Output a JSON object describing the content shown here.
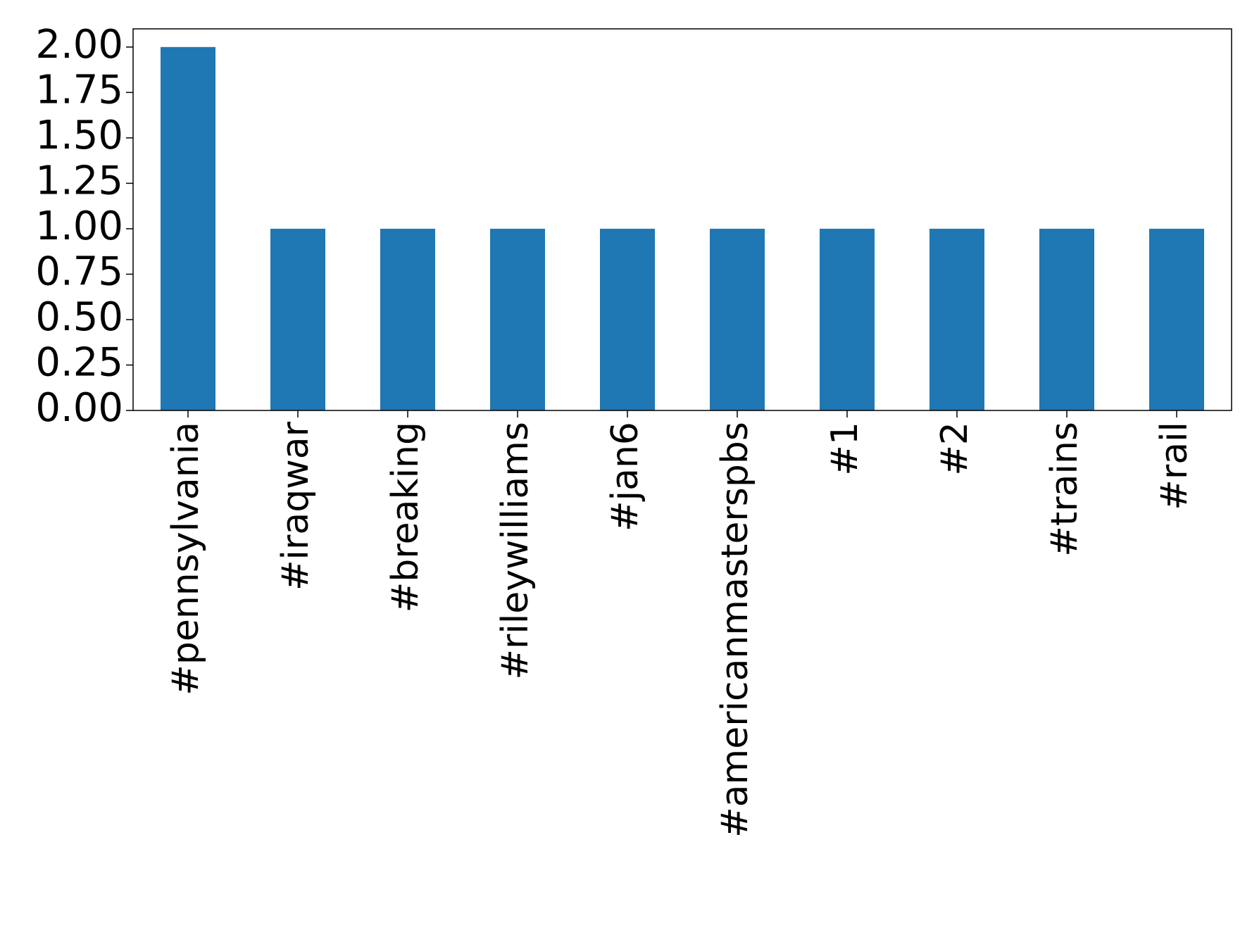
{
  "chart_data": {
    "type": "bar",
    "categories": [
      "#pennsylvania",
      "#iraqwar",
      "#breaking",
      "#rileywilliams",
      "#jan6",
      "#americanmasterspbs",
      "#1",
      "#2",
      "#trains",
      "#rail"
    ],
    "values": [
      2,
      1,
      1,
      1,
      1,
      1,
      1,
      1,
      1,
      1
    ],
    "color": "#1f77b4",
    "ylim": [
      0,
      2.1
    ],
    "yticks": [
      {
        "value": 0,
        "label": "0.00"
      },
      {
        "value": 0.25,
        "label": "0.25"
      },
      {
        "value": 0.5,
        "label": "0.50"
      },
      {
        "value": 0.75,
        "label": "0.75"
      },
      {
        "value": 1,
        "label": "1.00"
      },
      {
        "value": 1.25,
        "label": "1.25"
      },
      {
        "value": 1.5,
        "label": "1.50"
      },
      {
        "value": 1.75,
        "label": "1.75"
      },
      {
        "value": 2,
        "label": "2.00"
      }
    ],
    "grid": false
  }
}
